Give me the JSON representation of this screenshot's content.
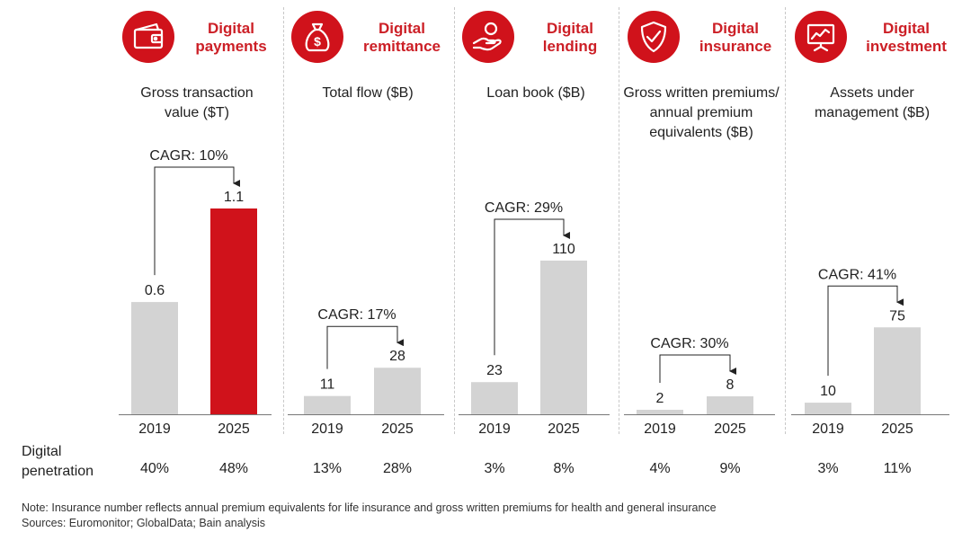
{
  "chart_data": {
    "type": "bar",
    "categories": [
      "2019",
      "2025"
    ],
    "panels": [
      {
        "title": "Digital\npayments",
        "icon": "wallet-icon",
        "metric": "Gross transaction\nvalue ($T)",
        "values": [
          0.6,
          1.1
        ],
        "value_labels": [
          "0.6",
          "1.1"
        ],
        "cagr": "CAGR: 10%",
        "penetration": [
          "40%",
          "48%"
        ],
        "highlight_color": "#d0121b"
      },
      {
        "title": "Digital\nremittance",
        "icon": "money-bag-icon",
        "metric": "Total flow ($B)",
        "values": [
          11,
          28
        ],
        "value_labels": [
          "11",
          "28"
        ],
        "cagr": "CAGR: 17%",
        "penetration": [
          "13%",
          "28%"
        ]
      },
      {
        "title": "Digital\nlending",
        "icon": "hand-coin-icon",
        "metric": "Loan book ($B)",
        "values": [
          23,
          110
        ],
        "value_labels": [
          "23",
          "110"
        ],
        "cagr": "CAGR: 29%",
        "penetration": [
          "3%",
          "8%"
        ]
      },
      {
        "title": "Digital\ninsurance",
        "icon": "shield-check-icon",
        "metric": "Gross written premiums/\nannual premium\nequivalents ($B)",
        "values": [
          2,
          8
        ],
        "value_labels": [
          "2",
          "8"
        ],
        "cagr": "CAGR: 30%",
        "penetration": [
          "4%",
          "9%"
        ]
      },
      {
        "title": "Digital\ninvestment",
        "icon": "chart-board-icon",
        "metric": "Assets under\nmanagement ($B)",
        "values": [
          10,
          75
        ],
        "value_labels": [
          "10",
          "75"
        ],
        "cagr": "CAGR: 41%",
        "penetration": [
          "3%",
          "11%"
        ]
      }
    ],
    "penetration_label": "Digital\npenetration",
    "colors": {
      "bar": "#d3d3d3",
      "accent": "#d0121b"
    }
  },
  "footer": {
    "note": "Note: Insurance number reflects annual premium equivalents for life insurance and gross written premiums for health and general insurance",
    "sources": "Sources: Euromonitor; GlobalData; Bain analysis"
  }
}
